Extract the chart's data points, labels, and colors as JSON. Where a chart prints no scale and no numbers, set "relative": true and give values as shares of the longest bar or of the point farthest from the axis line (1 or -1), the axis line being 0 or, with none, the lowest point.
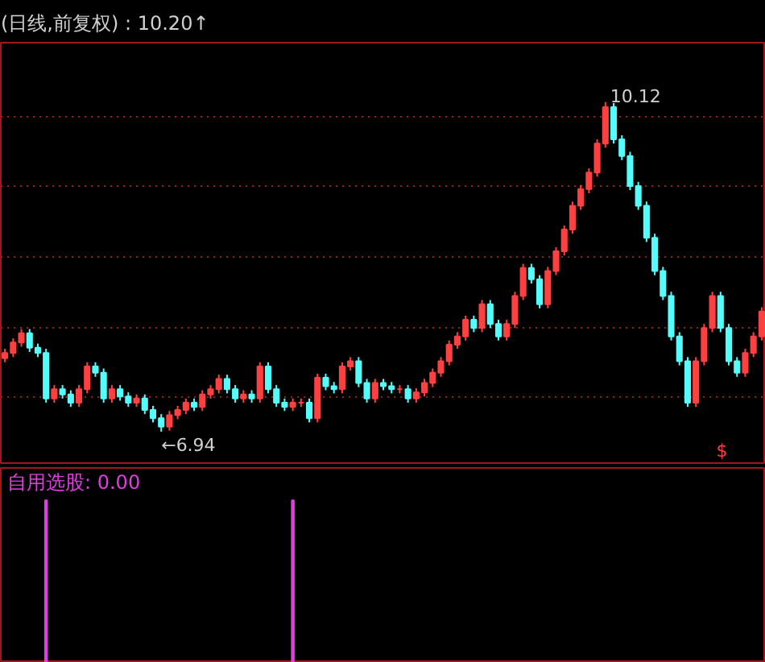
{
  "chart_data": [
    {
      "type": "candlestick",
      "title": "(日线,前复权) : 10.20↑",
      "categories": [
        null,
        null,
        null,
        null,
        null,
        null,
        null,
        null,
        null,
        null,
        null,
        null,
        null,
        null,
        null,
        null,
        null,
        null,
        null,
        null,
        null,
        null,
        null,
        null,
        null,
        null,
        null,
        null,
        null,
        null,
        null,
        null,
        null,
        null,
        null,
        null,
        null,
        null,
        null,
        null,
        null,
        null,
        null,
        null,
        null,
        null,
        null,
        null,
        null,
        null,
        null,
        null,
        null,
        null,
        null,
        null,
        null,
        null,
        null,
        null,
        null,
        null,
        null,
        null,
        null,
        null,
        null,
        null,
        null,
        null,
        null,
        null,
        null,
        null,
        null,
        null,
        null,
        null,
        null,
        null,
        null,
        null,
        null,
        null,
        null,
        null,
        null,
        null,
        null,
        null,
        null,
        null,
        null
      ],
      "ohlc": [
        [
          7.65,
          7.74,
          7.61,
          7.7
        ],
        [
          7.7,
          7.84,
          7.66,
          7.8
        ],
        [
          7.8,
          7.93,
          7.76,
          7.89
        ],
        [
          7.89,
          7.93,
          7.71,
          7.75
        ],
        [
          7.75,
          7.79,
          7.66,
          7.7
        ],
        [
          7.7,
          7.74,
          7.22,
          7.26
        ],
        [
          7.26,
          7.39,
          7.22,
          7.35
        ],
        [
          7.35,
          7.39,
          7.26,
          7.3
        ],
        [
          7.3,
          7.34,
          7.18,
          7.22
        ],
        [
          7.22,
          7.39,
          7.18,
          7.35
        ],
        [
          7.35,
          7.61,
          7.31,
          7.57
        ],
        [
          7.57,
          7.61,
          7.47,
          7.51
        ],
        [
          7.51,
          7.55,
          7.22,
          7.26
        ],
        [
          7.26,
          7.39,
          7.22,
          7.35
        ],
        [
          7.35,
          7.39,
          7.24,
          7.28
        ],
        [
          7.28,
          7.32,
          7.18,
          7.22
        ],
        [
          7.22,
          7.3,
          7.18,
          7.26
        ],
        [
          7.26,
          7.3,
          7.11,
          7.15
        ],
        [
          7.15,
          7.19,
          7.03,
          7.07
        ],
        [
          7.07,
          7.11,
          6.94,
          6.99
        ],
        [
          6.99,
          7.14,
          6.95,
          7.1
        ],
        [
          7.1,
          7.19,
          7.06,
          7.15
        ],
        [
          7.15,
          7.26,
          7.11,
          7.22
        ],
        [
          7.22,
          7.26,
          7.14,
          7.18
        ],
        [
          7.18,
          7.34,
          7.14,
          7.3
        ],
        [
          7.3,
          7.39,
          7.26,
          7.35
        ],
        [
          7.35,
          7.49,
          7.31,
          7.45
        ],
        [
          7.45,
          7.49,
          7.31,
          7.35
        ],
        [
          7.35,
          7.39,
          7.22,
          7.26
        ],
        [
          7.26,
          7.34,
          7.22,
          7.3
        ],
        [
          7.3,
          7.34,
          7.22,
          7.26
        ],
        [
          7.26,
          7.61,
          7.22,
          7.57
        ],
        [
          7.57,
          7.61,
          7.31,
          7.35
        ],
        [
          7.35,
          7.39,
          7.18,
          7.22
        ],
        [
          7.22,
          7.26,
          7.14,
          7.18
        ],
        [
          7.18,
          7.26,
          7.14,
          7.22
        ],
        [
          7.22,
          7.26,
          7.18,
          7.22
        ],
        [
          7.22,
          7.26,
          7.03,
          7.07
        ],
        [
          7.07,
          7.5,
          7.03,
          7.46
        ],
        [
          7.46,
          7.5,
          7.34,
          7.38
        ],
        [
          7.38,
          7.42,
          7.31,
          7.35
        ],
        [
          7.35,
          7.61,
          7.31,
          7.57
        ],
        [
          7.57,
          7.66,
          7.53,
          7.62
        ],
        [
          7.62,
          7.66,
          7.37,
          7.41
        ],
        [
          7.41,
          7.45,
          7.22,
          7.26
        ],
        [
          7.26,
          7.45,
          7.22,
          7.41
        ],
        [
          7.41,
          7.45,
          7.34,
          7.38
        ],
        [
          7.38,
          7.42,
          7.31,
          7.35
        ],
        [
          7.35,
          7.39,
          7.31,
          7.35
        ],
        [
          7.35,
          7.39,
          7.22,
          7.26
        ],
        [
          7.26,
          7.36,
          7.22,
          7.32
        ],
        [
          7.32,
          7.45,
          7.28,
          7.41
        ],
        [
          7.41,
          7.55,
          7.37,
          7.51
        ],
        [
          7.51,
          7.66,
          7.47,
          7.62
        ],
        [
          7.62,
          7.82,
          7.58,
          7.78
        ],
        [
          7.78,
          7.9,
          7.74,
          7.86
        ],
        [
          7.86,
          8.06,
          7.82,
          8.02
        ],
        [
          8.02,
          8.06,
          7.9,
          7.94
        ],
        [
          7.94,
          8.21,
          7.9,
          8.17
        ],
        [
          8.17,
          8.21,
          7.94,
          7.98
        ],
        [
          7.98,
          8.02,
          7.82,
          7.86
        ],
        [
          7.86,
          8.02,
          7.82,
          7.98
        ],
        [
          7.98,
          8.29,
          7.94,
          8.25
        ],
        [
          8.25,
          8.56,
          8.21,
          8.52
        ],
        [
          8.52,
          8.56,
          8.37,
          8.41
        ],
        [
          8.41,
          8.45,
          8.13,
          8.17
        ],
        [
          8.17,
          8.53,
          8.13,
          8.49
        ],
        [
          8.49,
          8.72,
          8.45,
          8.68
        ],
        [
          8.68,
          8.93,
          8.64,
          8.89
        ],
        [
          8.89,
          9.16,
          8.85,
          9.12
        ],
        [
          9.12,
          9.32,
          9.08,
          9.28
        ],
        [
          9.28,
          9.48,
          9.24,
          9.44
        ],
        [
          9.44,
          9.76,
          9.4,
          9.72
        ],
        [
          9.72,
          10.12,
          9.68,
          10.07
        ],
        [
          10.07,
          10.11,
          9.72,
          9.76
        ],
        [
          9.76,
          9.8,
          9.56,
          9.6
        ],
        [
          9.6,
          9.64,
          9.27,
          9.31
        ],
        [
          9.31,
          9.35,
          9.08,
          9.12
        ],
        [
          9.12,
          9.16,
          8.77,
          8.81
        ],
        [
          8.81,
          8.85,
          8.45,
          8.49
        ],
        [
          8.49,
          8.53,
          8.21,
          8.25
        ],
        [
          8.25,
          8.29,
          7.82,
          7.86
        ],
        [
          7.86,
          7.9,
          7.58,
          7.62
        ],
        [
          7.62,
          7.66,
          7.18,
          7.22
        ],
        [
          7.22,
          7.66,
          7.18,
          7.62
        ],
        [
          7.62,
          7.98,
          7.58,
          7.94
        ],
        [
          7.94,
          8.29,
          7.9,
          8.25
        ],
        [
          8.25,
          8.29,
          7.9,
          7.94
        ],
        [
          7.94,
          7.98,
          7.58,
          7.62
        ],
        [
          7.62,
          7.66,
          7.47,
          7.51
        ],
        [
          7.51,
          7.74,
          7.47,
          7.7
        ],
        [
          7.7,
          7.9,
          7.66,
          7.86
        ],
        [
          7.86,
          8.14,
          7.82,
          8.1
        ]
      ],
      "yticks": [
        {
          "value": 7.27,
          "label": null
        },
        {
          "value": 7.95,
          "label": null
        },
        {
          "value": 8.63,
          "label": null
        },
        {
          "value": 9.31,
          "label": null
        },
        {
          "value": 9.98,
          "label": null
        }
      ],
      "grid": "y",
      "tick_labels": false,
      "annotations": [
        "←6.94",
        "10.12",
        "$"
      ]
    },
    {
      "type": "bar",
      "relative": true,
      "tick_labels": false,
      "categories": [
        null,
        null,
        null,
        null,
        null,
        null,
        null,
        null,
        null,
        null,
        null,
        null,
        null,
        null,
        null,
        null,
        null,
        null,
        null,
        null,
        null,
        null,
        null,
        null,
        null,
        null,
        null,
        null,
        null,
        null,
        null,
        null,
        null,
        null,
        null,
        null,
        null,
        null,
        null,
        null,
        null,
        null,
        null,
        null,
        null,
        null,
        null,
        null,
        null,
        null,
        null,
        null,
        null,
        null,
        null,
        null,
        null,
        null,
        null,
        null,
        null,
        null,
        null,
        null,
        null,
        null,
        null,
        null,
        null,
        null,
        null,
        null,
        null,
        null,
        null,
        null,
        null,
        null,
        null,
        null,
        null,
        null,
        null,
        null,
        null,
        null,
        null,
        null,
        null,
        null,
        null,
        null,
        null
      ],
      "series": [
        {
          "name": "自用选股",
          "color": "#e23ce2",
          "values": [
            0,
            0,
            0,
            0,
            0,
            1,
            0,
            0,
            0,
            0,
            0,
            0,
            0,
            0,
            0,
            0,
            0,
            0,
            0,
            0,
            0,
            0,
            0,
            0,
            0,
            0,
            0,
            0,
            0,
            0,
            0,
            0,
            0,
            0,
            0,
            1,
            0,
            0,
            0,
            0,
            0,
            0,
            0,
            0,
            0,
            0,
            0,
            0,
            0,
            0,
            0,
            0,
            0,
            0,
            0,
            0,
            0,
            0,
            0,
            0,
            0,
            0,
            0,
            0,
            0,
            0,
            0,
            0,
            0,
            0,
            0,
            0,
            0,
            0,
            0,
            0,
            0,
            0,
            0,
            0,
            0,
            0,
            0,
            0,
            0,
            0,
            0,
            0,
            0,
            0,
            0,
            0,
            0
          ]
        }
      ],
      "annotations": [
        ": 0.00"
      ]
    }
  ]
}
